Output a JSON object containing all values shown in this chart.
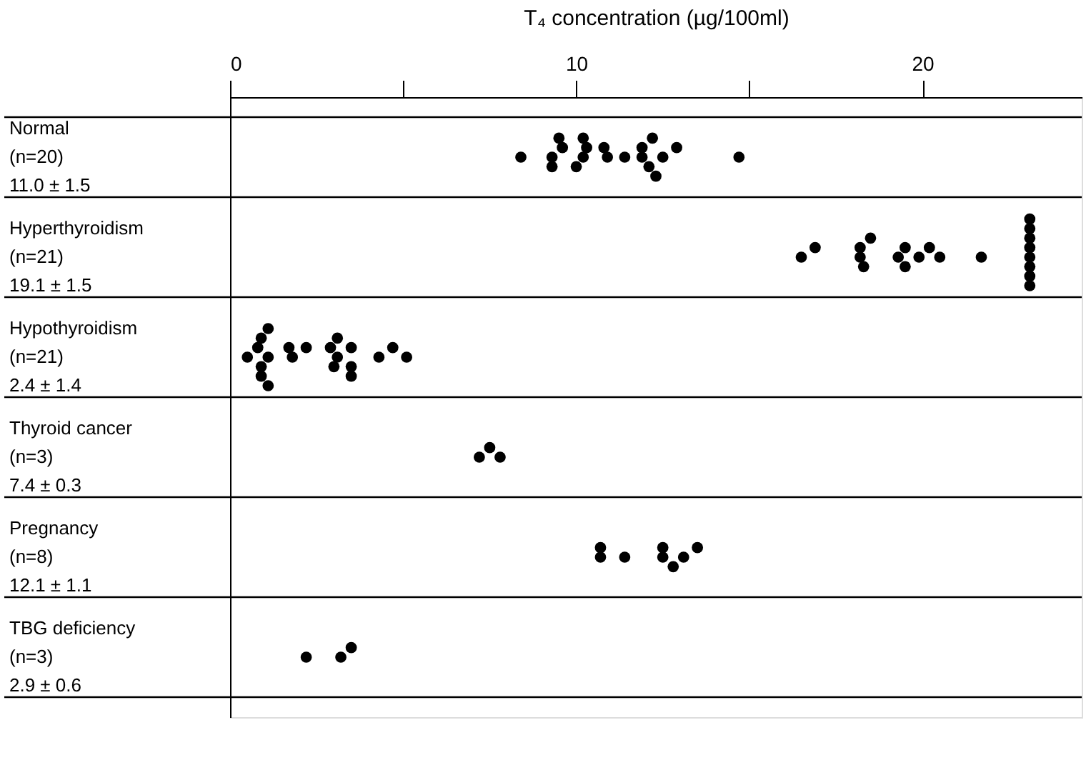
{
  "chart_data": {
    "type": "scatter",
    "orientation": "horizontal",
    "xlabel": "T₄ concentration (µg/100ml)",
    "categories": [
      "Normal\n(n=20)\n11.0 ± 1.5",
      "Hyperthyroidism\n(n=21)\n19.1 ± 1.5",
      "Hypothyroidism\n(n=21)\n2.4 ± 1.4",
      "Thyroid cancer\n(n=3)\n7.4 ± 0.3",
      "Pregnancy\n(n=8)\n12.1 ± 1.1",
      "TBG deficiency\n(n=3)\n2.9 ± 0.6"
    ],
    "series": [
      {
        "color": "#000000",
        "x": [
          "Normal\n(n=20)\n11.0 ± 1.5",
          "Normal\n(n=20)\n11.0 ± 1.5",
          "Normal\n(n=20)\n11.0 ± 1.5",
          "Normal\n(n=20)\n11.0 ± 1.5",
          "Normal\n(n=20)\n11.0 ± 1.5",
          "Normal\n(n=20)\n11.0 ± 1.5",
          "Normal\n(n=20)\n11.0 ± 1.5",
          "Normal\n(n=20)\n11.0 ± 1.5",
          "Normal\n(n=20)\n11.0 ± 1.5",
          "Normal\n(n=20)\n11.0 ± 1.5",
          "Normal\n(n=20)\n11.0 ± 1.5",
          "Normal\n(n=20)\n11.0 ± 1.5",
          "Normal\n(n=20)\n11.0 ± 1.5",
          "Normal\n(n=20)\n11.0 ± 1.5",
          "Normal\n(n=20)\n11.0 ± 1.5",
          "Normal\n(n=20)\n11.0 ± 1.5",
          "Normal\n(n=20)\n11.0 ± 1.5",
          "Normal\n(n=20)\n11.0 ± 1.5",
          "Normal\n(n=20)\n11.0 ± 1.5",
          "Normal\n(n=20)\n11.0 ± 1.5"
        ],
        "values": [
          8.4,
          9.3,
          9.6,
          9.3,
          9.5,
          10.2,
          10.0,
          10.3,
          10.2,
          10.9,
          10.8,
          11.4,
          11.9,
          11.9,
          12.1,
          12.2,
          12.5,
          12.9,
          12.3,
          14.7
        ]
      },
      {
        "color": "#000000",
        "x": [
          "Hyperthyroidism\n(n=21)\n19.1 ± 1.5",
          "Hyperthyroidism\n(n=21)\n19.1 ± 1.5",
          "Hyperthyroidism\n(n=21)\n19.1 ± 1.5",
          "Hyperthyroidism\n(n=21)\n19.1 ± 1.5",
          "Hyperthyroidism\n(n=21)\n19.1 ± 1.5",
          "Hyperthyroidism\n(n=21)\n19.1 ± 1.5",
          "Hyperthyroidism\n(n=21)\n19.1 ± 1.5",
          "Hyperthyroidism\n(n=21)\n19.1 ± 1.5",
          "Hyperthyroidism\n(n=21)\n19.1 ± 1.5",
          "Hyperthyroidism\n(n=21)\n19.1 ± 1.5",
          "Hyperthyroidism\n(n=21)\n19.1 ± 1.5",
          "Hyperthyroidism\n(n=21)\n19.1 ± 1.5",
          "Hyperthyroidism\n(n=21)\n19.1 ± 1.5",
          "Hyperthyroidism\n(n=21)\n19.1 ± 1.5",
          "Hyperthyroidism\n(n=21)\n19.1 ± 1.5",
          "Hyperthyroidism\n(n=21)\n19.1 ± 1.5",
          "Hyperthyroidism\n(n=21)\n19.1 ± 1.5",
          "Hyperthyroidism\n(n=21)\n19.1 ± 1.5",
          "Hyperthyroidism\n(n=21)\n19.1 ± 1.5",
          "Hyperthyroidism\n(n=21)\n19.1 ± 1.5",
          "Hyperthyroidism\n(n=21)\n19.1 ± 1.5"
        ],
        "values": [
          16.5,
          16.9,
          18.2,
          18.2,
          18.3,
          18.5,
          19.3,
          19.5,
          19.5,
          19.9,
          20.2,
          20.5,
          21.7,
          23.1,
          23.1,
          23.1,
          23.1,
          23.1,
          23.1,
          23.1,
          23.1
        ]
      },
      {
        "color": "#000000",
        "x": [
          "Hypothyroidism\n(n=21)\n2.4 ± 1.4",
          "Hypothyroidism\n(n=21)\n2.4 ± 1.4",
          "Hypothyroidism\n(n=21)\n2.4 ± 1.4",
          "Hypothyroidism\n(n=21)\n2.4 ± 1.4",
          "Hypothyroidism\n(n=21)\n2.4 ± 1.4",
          "Hypothyroidism\n(n=21)\n2.4 ± 1.4",
          "Hypothyroidism\n(n=21)\n2.4 ± 1.4",
          "Hypothyroidism\n(n=21)\n2.4 ± 1.4",
          "Hypothyroidism\n(n=21)\n2.4 ± 1.4",
          "Hypothyroidism\n(n=21)\n2.4 ± 1.4",
          "Hypothyroidism\n(n=21)\n2.4 ± 1.4",
          "Hypothyroidism\n(n=21)\n2.4 ± 1.4",
          "Hypothyroidism\n(n=21)\n2.4 ± 1.4",
          "Hypothyroidism\n(n=21)\n2.4 ± 1.4",
          "Hypothyroidism\n(n=21)\n2.4 ± 1.4",
          "Hypothyroidism\n(n=21)\n2.4 ± 1.4",
          "Hypothyroidism\n(n=21)\n2.4 ± 1.4",
          "Hypothyroidism\n(n=21)\n2.4 ± 1.4",
          "Hypothyroidism\n(n=21)\n2.4 ± 1.4",
          "Hypothyroidism\n(n=21)\n2.4 ± 1.4",
          "Hypothyroidism\n(n=21)\n2.4 ± 1.4"
        ],
        "values": [
          0.5,
          0.8,
          0.9,
          0.9,
          1.1,
          0.9,
          1.1,
          1.1,
          1.8,
          1.7,
          2.2,
          3.1,
          2.9,
          3.5,
          3.0,
          3.5,
          3.1,
          3.5,
          4.3,
          4.7,
          5.1
        ]
      },
      {
        "color": "#000000",
        "x": [
          "Thyroid cancer\n(n=3)\n7.4 ± 0.3",
          "Thyroid cancer\n(n=3)\n7.4 ± 0.3",
          "Thyroid cancer\n(n=3)\n7.4 ± 0.3"
        ],
        "values": [
          7.2,
          7.8,
          7.5
        ]
      },
      {
        "color": "#000000",
        "x": [
          "Pregnancy\n(n=8)\n12.1 ± 1.1",
          "Pregnancy\n(n=8)\n12.1 ± 1.1",
          "Pregnancy\n(n=8)\n12.1 ± 1.1",
          "Pregnancy\n(n=8)\n12.1 ± 1.1",
          "Pregnancy\n(n=8)\n12.1 ± 1.1",
          "Pregnancy\n(n=8)\n12.1 ± 1.1",
          "Pregnancy\n(n=8)\n12.1 ± 1.1",
          "Pregnancy\n(n=8)\n12.1 ± 1.1"
        ],
        "values": [
          10.7,
          10.7,
          11.4,
          12.5,
          12.5,
          12.8,
          13.1,
          13.5
        ]
      },
      {
        "color": "#000000",
        "x": [
          "TBG deficiency\n(n=3)\n2.9 ± 0.6",
          "TBG deficiency\n(n=3)\n2.9 ± 0.6",
          "TBG deficiency\n(n=3)\n2.9 ± 0.6"
        ],
        "values": [
          2.2,
          3.2,
          3.5
        ]
      }
    ],
    "marker": "circle",
    "xlim": [
      0,
      24.6
    ],
    "xticks": [
      0,
      {
        "value": 5,
        "label": null
      },
      10,
      {
        "value": 15,
        "label": null
      },
      20
    ],
    "grid": "y",
    "legend": false
  }
}
